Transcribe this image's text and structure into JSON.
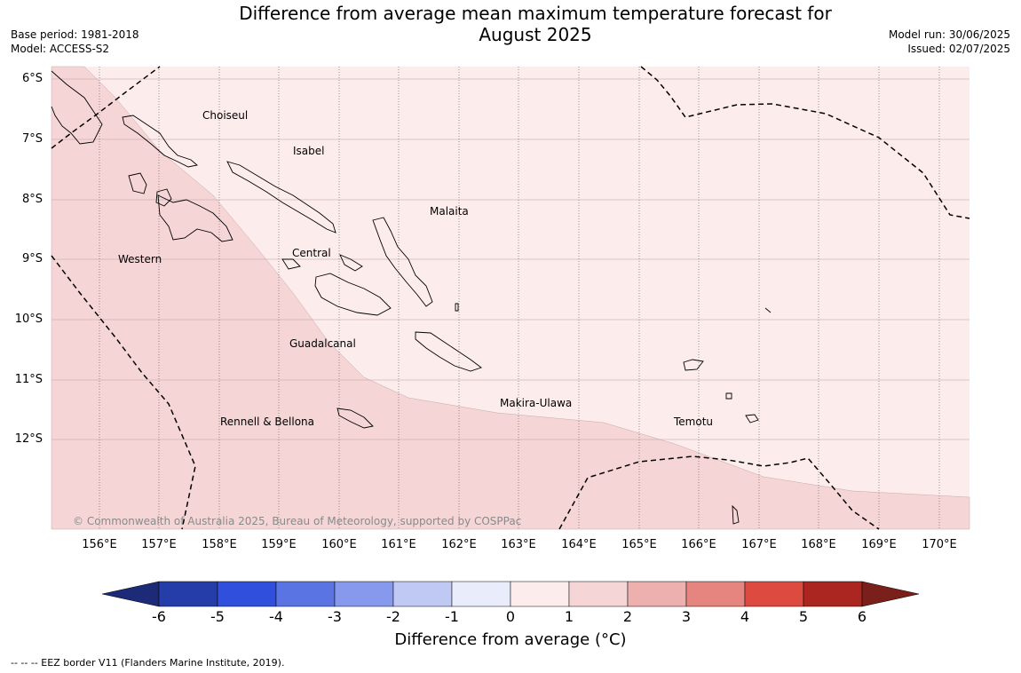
{
  "title_line1": "Difference from average mean maximum temperature forecast for",
  "title_line2": "August 2025",
  "meta_left": {
    "base_period": "Base period: 1981-2018",
    "model": "Model: ACCESS-S2"
  },
  "meta_right": {
    "model_run": "Model run: 30/06/2025",
    "issued": "Issued: 02/07/2025"
  },
  "lat_labels": [
    "6°S",
    "7°S",
    "8°S",
    "9°S",
    "10°S",
    "11°S",
    "12°S"
  ],
  "lon_labels": [
    "156°E",
    "157°E",
    "158°E",
    "159°E",
    "160°E",
    "161°E",
    "162°E",
    "163°E",
    "164°E",
    "165°E",
    "166°E",
    "167°E",
    "168°E",
    "169°E",
    "170°E"
  ],
  "regions": {
    "choiseul": "Choiseul",
    "isabel": "Isabel",
    "malaita": "Malaita",
    "western": "Western",
    "central": "Central",
    "guadalcanal": "Guadalcanal",
    "makira_ulawa": "Makira-Ulawa",
    "temotu": "Temotu",
    "rennell_bellona": "Rennell & Bellona"
  },
  "copyright": "© Commonwealth of Australia 2025, Bureau of Meteorology, supported by COSPPac",
  "colorbar": {
    "ticks": [
      "-6",
      "-5",
      "-4",
      "-3",
      "-2",
      "-1",
      "0",
      "1",
      "2",
      "3",
      "4",
      "5",
      "6"
    ],
    "colors": [
      "#253da8",
      "#2f4fdc",
      "#5a74e4",
      "#8799ec",
      "#c0c9f4",
      "#e9edfb",
      "#fcecec",
      "#f5d5d5",
      "#eeafaf",
      "#e6857f",
      "#dc4a40",
      "#ab2620"
    ],
    "under_color": "#1c2a78",
    "over_color": "#7a1f1a",
    "label": "Difference from average (°C)"
  },
  "eez_note": "--  --  -- EEZ border V11 (Flanders Marine Institute, 2019).",
  "field": {
    "0_1_color": "#fcecec",
    "1_2_color": "#f5d5d5"
  }
}
